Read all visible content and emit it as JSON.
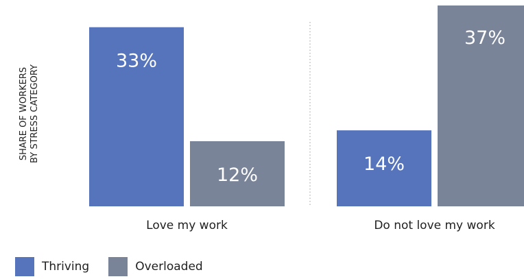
{
  "chart_data": {
    "type": "bar",
    "ylabel": [
      "SHARE OF WORKERS",
      "BY STRESS CATEGORY"
    ],
    "categories": [
      "Love my work",
      "Do not love my work"
    ],
    "series": [
      {
        "name": "Thriving",
        "values": [
          33,
          14
        ],
        "labels": [
          "33%",
          "14%"
        ],
        "color": "#5574BC"
      },
      {
        "name": "Overloaded",
        "values": [
          12,
          37
        ],
        "labels": [
          "12%",
          "37%"
        ],
        "color": "#7A8499"
      }
    ],
    "ylim": [
      0,
      37
    ],
    "grid": false,
    "legend_position": "bottom-left",
    "divider": true
  }
}
